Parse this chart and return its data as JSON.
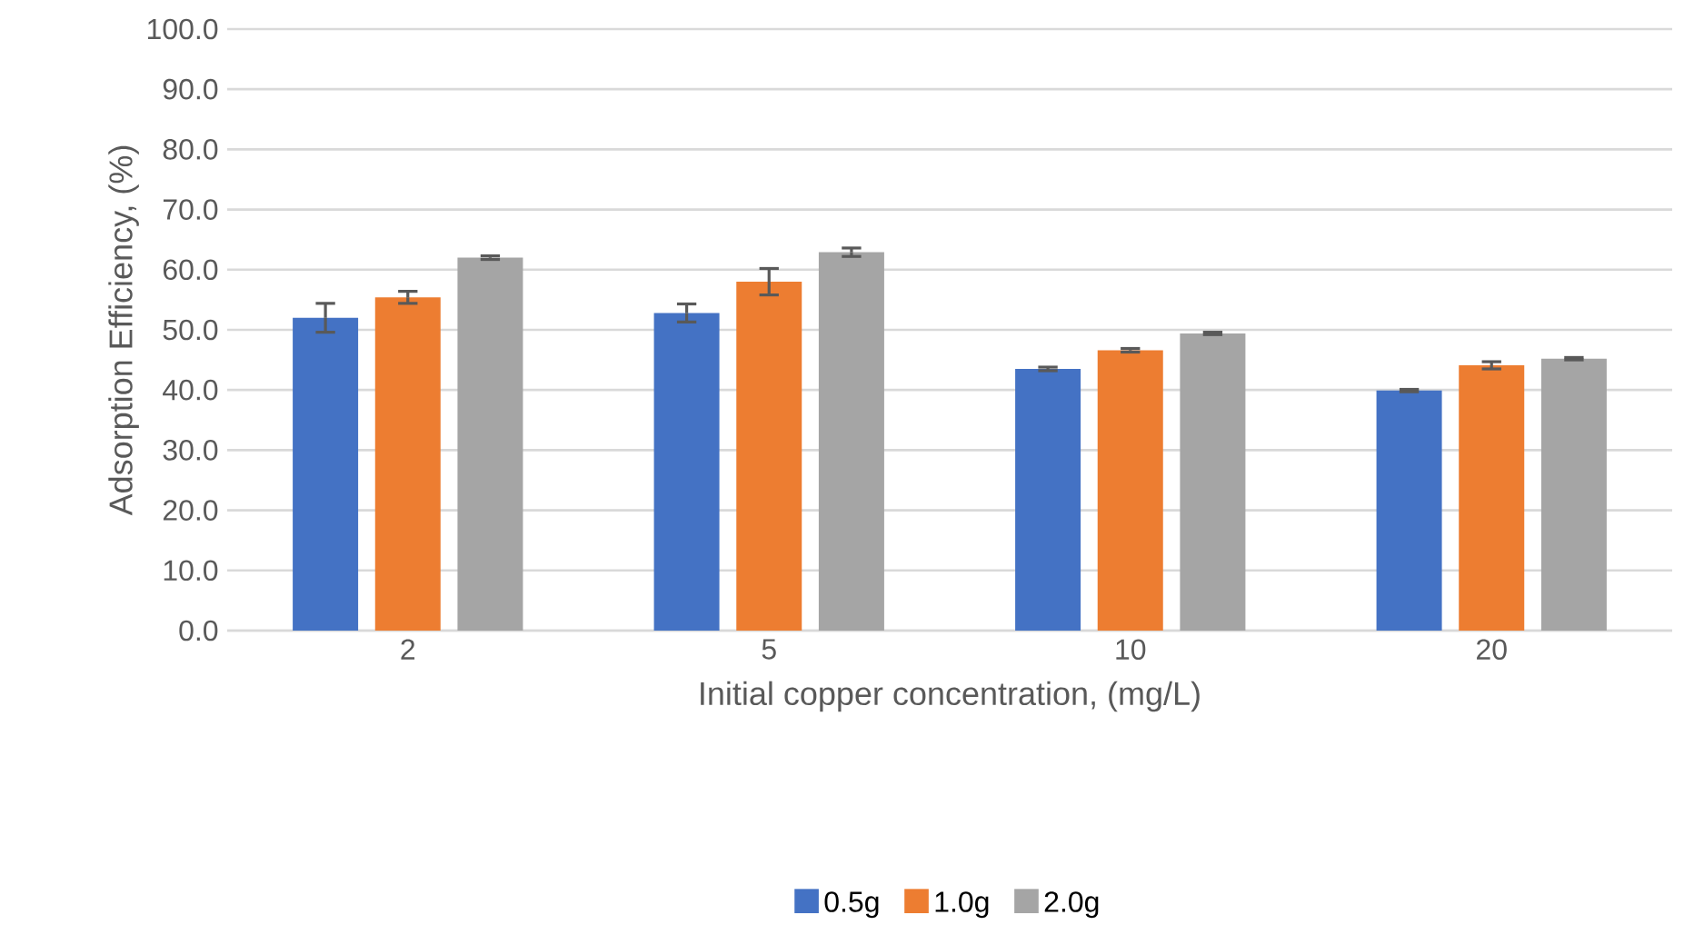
{
  "chart_data": {
    "type": "bar",
    "xlabel": "Initial copper concentration, (mg/L)",
    "ylabel": "Adsorption Efficiency, (%)",
    "categories": [
      "2",
      "5",
      "10",
      "20"
    ],
    "series": [
      {
        "name": "0.5g",
        "color": "#4472c4",
        "values": [
          52.0,
          52.8,
          43.5,
          39.9
        ],
        "errors": [
          2.4,
          1.5,
          0.3,
          0.2
        ]
      },
      {
        "name": "1.0g",
        "color": "#ed7d31",
        "values": [
          55.4,
          58.0,
          46.6,
          44.1
        ],
        "errors": [
          1.0,
          2.2,
          0.3,
          0.6
        ]
      },
      {
        "name": "2.0g",
        "color": "#a5a5a5",
        "values": [
          62.0,
          62.9,
          49.4,
          45.2
        ],
        "errors": [
          0.3,
          0.7,
          0.2,
          0.2
        ]
      }
    ],
    "ylim": [
      0,
      100
    ],
    "yticks": [
      {
        "value": 0,
        "label": "0.0"
      },
      {
        "value": 10,
        "label": "10.0"
      },
      {
        "value": 20,
        "label": "20.0"
      },
      {
        "value": 30,
        "label": "30.0"
      },
      {
        "value": 40,
        "label": "40.0"
      },
      {
        "value": 50,
        "label": "50.0"
      },
      {
        "value": 60,
        "label": "60.0"
      },
      {
        "value": 70,
        "label": "70.0"
      },
      {
        "value": 80,
        "label": "80.0"
      },
      {
        "value": 90,
        "label": "90.0"
      },
      {
        "value": 100,
        "label": "100.0"
      }
    ],
    "grid": "y",
    "legend": "bottom"
  }
}
